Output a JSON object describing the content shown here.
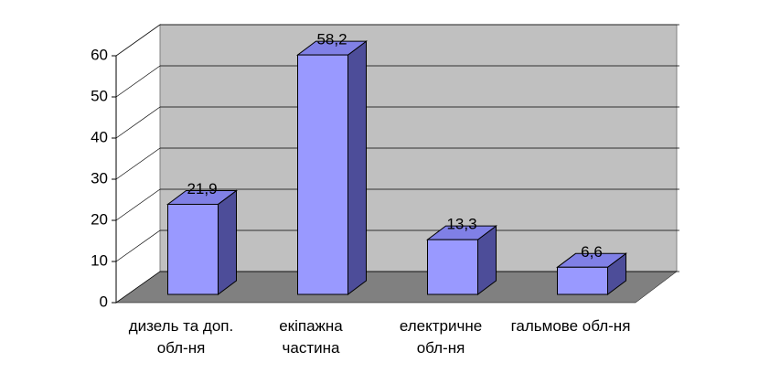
{
  "chart_data": {
    "type": "bar3d",
    "categories": [
      "дизель та доп. обл-ня",
      "екіпажна частина",
      "електричне обл-ня",
      "гальмове обл-ня"
    ],
    "values": [
      21.9,
      58.2,
      13.3,
      6.6
    ],
    "value_labels": [
      "21,9",
      "58,2",
      "13,3",
      "6,6"
    ],
    "color": "#9999ff",
    "ylim": [
      0,
      60
    ],
    "yticks": [
      0,
      10,
      20,
      30,
      40,
      50,
      60
    ],
    "grid": true
  }
}
